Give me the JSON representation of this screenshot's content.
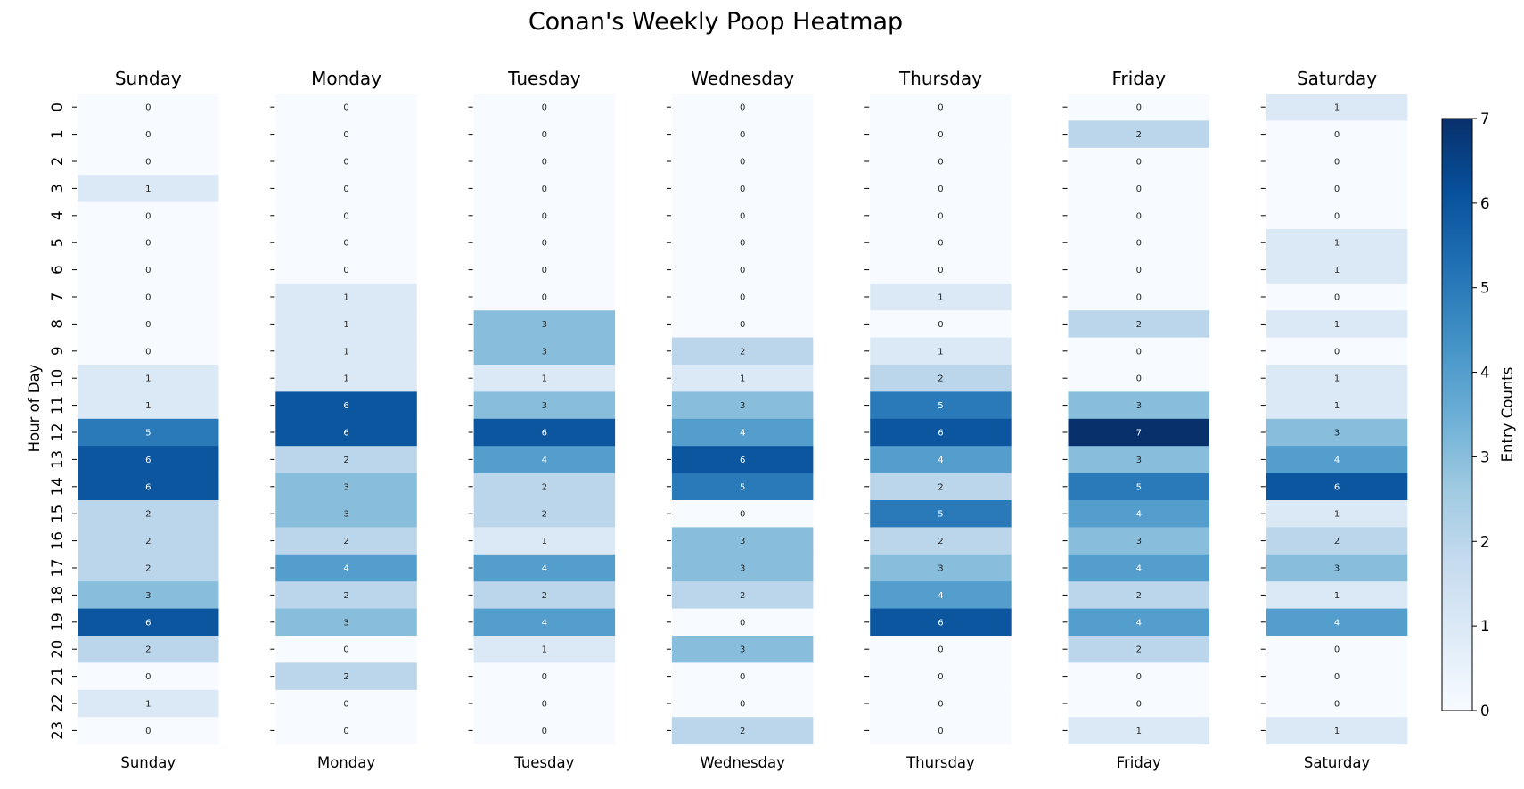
{
  "chart_data": {
    "type": "heatmap",
    "title": "Conan's Weekly Poop Heatmap",
    "ylabel": "Hour of Day",
    "colorbar_label": "Entry Counts",
    "colormap": "Blues",
    "vmin": 0,
    "vmax": 7,
    "colorbar_ticks": [
      "0",
      "1",
      "2",
      "3",
      "4",
      "5",
      "6",
      "7"
    ],
    "hours": [
      "0",
      "1",
      "2",
      "3",
      "4",
      "5",
      "6",
      "7",
      "8",
      "9",
      "10",
      "11",
      "12",
      "13",
      "14",
      "15",
      "16",
      "17",
      "18",
      "19",
      "20",
      "21",
      "22",
      "23"
    ],
    "days": [
      {
        "name": "Sunday",
        "values": [
          0,
          0,
          0,
          1,
          0,
          0,
          0,
          0,
          0,
          0,
          1,
          1,
          5,
          6,
          6,
          2,
          2,
          2,
          3,
          6,
          2,
          0,
          1,
          0
        ]
      },
      {
        "name": "Monday",
        "values": [
          0,
          0,
          0,
          0,
          0,
          0,
          0,
          1,
          1,
          1,
          1,
          6,
          6,
          2,
          3,
          3,
          2,
          4,
          2,
          3,
          0,
          2,
          0,
          0
        ]
      },
      {
        "name": "Tuesday",
        "values": [
          0,
          0,
          0,
          0,
          0,
          0,
          0,
          0,
          3,
          3,
          1,
          3,
          6,
          4,
          2,
          2,
          1,
          4,
          2,
          4,
          1,
          0,
          0,
          0
        ]
      },
      {
        "name": "Wednesday",
        "values": [
          0,
          0,
          0,
          0,
          0,
          0,
          0,
          0,
          0,
          2,
          1,
          3,
          4,
          6,
          5,
          0,
          3,
          3,
          2,
          0,
          3,
          0,
          0,
          2
        ]
      },
      {
        "name": "Thursday",
        "values": [
          0,
          0,
          0,
          0,
          0,
          0,
          0,
          1,
          0,
          1,
          2,
          5,
          6,
          4,
          2,
          5,
          2,
          3,
          4,
          6,
          0,
          0,
          0,
          0
        ]
      },
      {
        "name": "Friday",
        "values": [
          0,
          2,
          0,
          0,
          0,
          0,
          0,
          0,
          2,
          0,
          0,
          3,
          7,
          3,
          5,
          4,
          3,
          4,
          2,
          4,
          2,
          0,
          0,
          1
        ]
      },
      {
        "name": "Saturday",
        "values": [
          1,
          0,
          0,
          0,
          0,
          1,
          1,
          0,
          1,
          0,
          1,
          1,
          3,
          4,
          6,
          1,
          2,
          3,
          1,
          4,
          0,
          0,
          0,
          1
        ]
      }
    ]
  }
}
